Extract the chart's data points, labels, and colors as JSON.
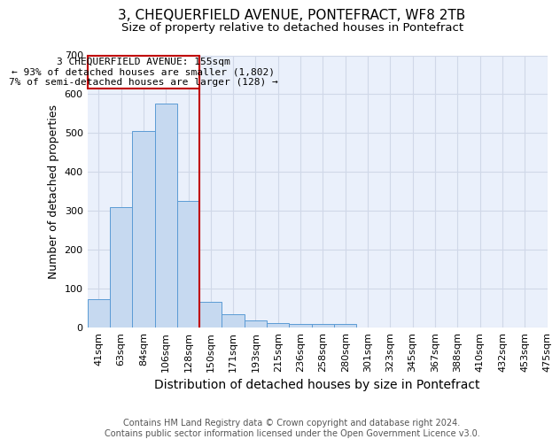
{
  "title": "3, CHEQUERFIELD AVENUE, PONTEFRACT, WF8 2TB",
  "subtitle": "Size of property relative to detached houses in Pontefract",
  "xlabel": "Distribution of detached houses by size in Pontefract",
  "ylabel": "Number of detached properties",
  "bar_values": [
    72,
    310,
    505,
    575,
    325,
    65,
    35,
    18,
    12,
    10,
    10,
    8,
    0,
    0,
    0,
    0,
    0,
    0,
    0,
    0
  ],
  "bar_labels": [
    "41sqm",
    "63sqm",
    "84sqm",
    "106sqm",
    "128sqm",
    "150sqm",
    "171sqm",
    "193sqm",
    "215sqm",
    "236sqm",
    "258sqm",
    "280sqm",
    "301sqm",
    "323sqm",
    "345sqm",
    "367sqm",
    "388sqm",
    "410sqm",
    "432sqm",
    "453sqm",
    "475sqm"
  ],
  "bar_color": "#c6d9f0",
  "bar_edge_color": "#5b9bd5",
  "grid_color": "#d0d8e8",
  "background_color": "#eaf0fb",
  "property_line_color": "#c00000",
  "annotation_text": "3 CHEQUERFIELD AVENUE: 155sqm\n← 93% of detached houses are smaller (1,802)\n7% of semi-detached houses are larger (128) →",
  "annotation_box_color": "#c00000",
  "ylim": [
    0,
    700
  ],
  "yticks": [
    0,
    100,
    200,
    300,
    400,
    500,
    600,
    700
  ],
  "footer_text": "Contains HM Land Registry data © Crown copyright and database right 2024.\nContains public sector information licensed under the Open Government Licence v3.0.",
  "title_fontsize": 11,
  "subtitle_fontsize": 9.5,
  "xlabel_fontsize": 10,
  "ylabel_fontsize": 9,
  "tick_fontsize": 8
}
